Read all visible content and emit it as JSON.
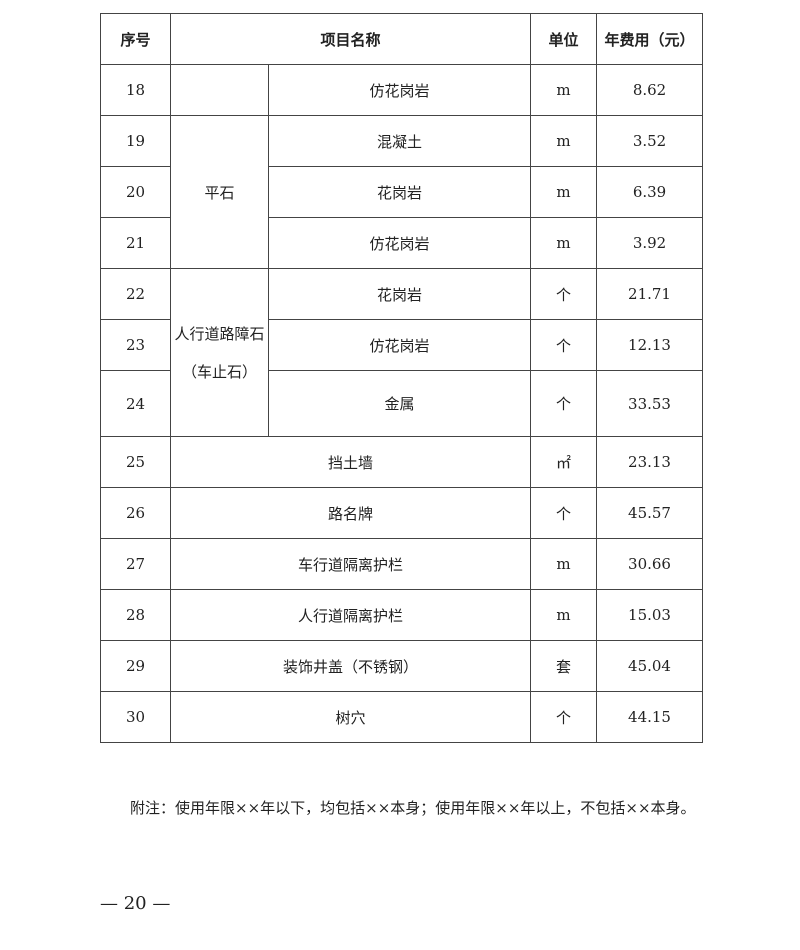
{
  "table": {
    "headers": [
      "序号",
      "项目名称",
      "单位",
      "年费用（元）"
    ],
    "rows": [
      {
        "no": "18",
        "group": "",
        "name": "仿花岗岩",
        "unit": "m",
        "fee": "8.62"
      },
      {
        "no": "19",
        "group": "平石",
        "name": "混凝土",
        "unit": "m",
        "fee": "3.52"
      },
      {
        "no": "20",
        "name": "花岗岩",
        "unit": "m",
        "fee": "6.39"
      },
      {
        "no": "21",
        "name": "仿花岗岩",
        "unit": "m",
        "fee": "3.92"
      },
      {
        "no": "22",
        "group": "人行道路障石（车止石）",
        "name": "花岗岩",
        "unit": "个",
        "fee": "21.71"
      },
      {
        "no": "23",
        "name": "仿花岗岩",
        "unit": "个",
        "fee": "12.13"
      },
      {
        "no": "24",
        "name": "金属",
        "unit": "个",
        "fee": "33.53"
      },
      {
        "no": "25",
        "name": "挡土墙",
        "unit": "㎡",
        "fee": "23.13"
      },
      {
        "no": "26",
        "name": "路名牌",
        "unit": "个",
        "fee": "45.57"
      },
      {
        "no": "27",
        "name": "车行道隔离护栏",
        "unit": "m",
        "fee": "30.66"
      },
      {
        "no": "28",
        "name": "人行道隔离护栏",
        "unit": "m",
        "fee": "15.03"
      },
      {
        "no": "29",
        "name": "装饰井盖（不锈钢）",
        "unit": "套",
        "fee": "45.04"
      },
      {
        "no": "30",
        "name": "树穴",
        "unit": "个",
        "fee": "44.15"
      }
    ]
  },
  "note": "附注：使用年限××年以下，均包括××本身；使用年限××年以上，不包括××本身。",
  "page_number": "— 20 —"
}
